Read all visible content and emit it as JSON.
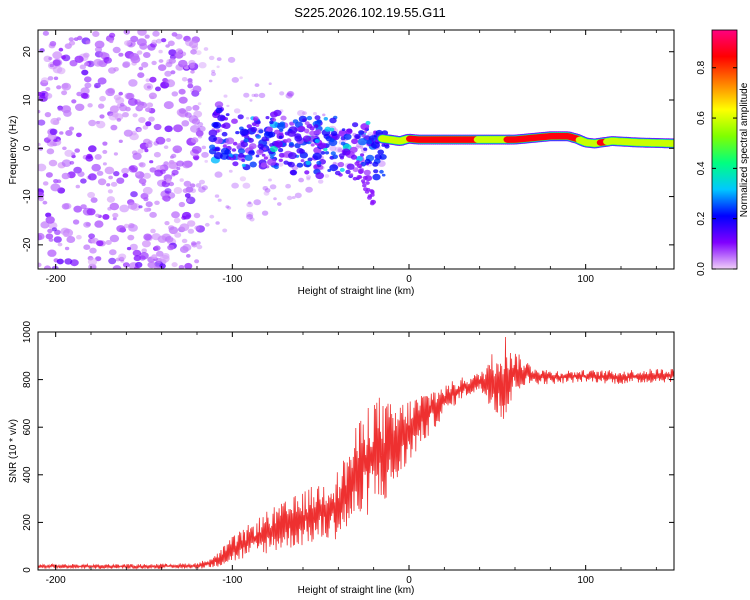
{
  "page_title": "S225.2026.102.19.55.G11",
  "chart_data": [
    {
      "type": "heatmap",
      "title": "S225.2026.102.19.55.G11",
      "xlabel": "Height of straight line (km)",
      "ylabel": "Frequency (Hz)",
      "xlim": [
        -210,
        150
      ],
      "ylim": [
        -25,
        24.5
      ],
      "xticks": [
        -200,
        -100,
        0,
        100
      ],
      "yticks": [
        20,
        10,
        0,
        -10,
        -20
      ],
      "colorbar": {
        "label": "Normalized spectral amplitude",
        "range": [
          0,
          0.95
        ],
        "ticks": [
          0.0,
          0.2,
          0.4,
          0.6,
          0.8
        ],
        "colors": [
          "#f0d0f8",
          "#8000ff",
          "#0000ff",
          "#00c8ff",
          "#00ff80",
          "#80ff00",
          "#ffff00",
          "#ff8000",
          "#ff0000",
          "#ff0080"
        ]
      },
      "regions": [
        {
          "name": "scattered noise",
          "x": [
            -210,
            -120
          ],
          "freq": [
            -25,
            24.5
          ],
          "amplitude": 0.1
        },
        {
          "name": "emerging signal",
          "x": [
            -120,
            -15
          ],
          "freq": [
            -15,
            12
          ],
          "amplitude": 0.25
        },
        {
          "name": "tracked tone",
          "x": [
            -15,
            150
          ],
          "freq": [
            0.5,
            3
          ],
          "amplitude": 0.9
        }
      ],
      "ridge": {
        "x": [
          -15,
          -5,
          0,
          5,
          20,
          40,
          60,
          80,
          90,
          95,
          100,
          105,
          115,
          130,
          150
        ],
        "freq": [
          2,
          1.5,
          2,
          1.8,
          1.8,
          1.8,
          1.8,
          2.5,
          2.5,
          2.0,
          1.2,
          1.0,
          1.5,
          1.2,
          1.0
        ]
      }
    },
    {
      "type": "line",
      "xlabel": "Height of straight line (km)",
      "ylabel": "SNR (10 * v/v)",
      "xlim": [
        -210,
        150
      ],
      "ylim": [
        0,
        1000
      ],
      "xticks": [
        -200,
        -100,
        0,
        100
      ],
      "yticks": [
        0,
        200,
        400,
        600,
        800,
        1000
      ],
      "series": [
        {
          "name": "SNR",
          "color": "#ee3030",
          "x": [
            -210,
            -180,
            -150,
            -120,
            -110,
            -100,
            -80,
            -60,
            -40,
            -30,
            -20,
            -10,
            0,
            10,
            20,
            30,
            40,
            50,
            55,
            60,
            70,
            80,
            100,
            120,
            150
          ],
          "y_min": [
            5,
            5,
            5,
            5,
            10,
            30,
            70,
            100,
            130,
            180,
            250,
            300,
            450,
            550,
            650,
            720,
            750,
            650,
            600,
            750,
            780,
            780,
            790,
            780,
            790
          ],
          "y_max": [
            25,
            25,
            25,
            30,
            60,
            140,
            250,
            330,
            420,
            600,
            750,
            700,
            720,
            760,
            780,
            810,
            830,
            950,
            1000,
            920,
            860,
            840,
            840,
            840,
            850
          ]
        }
      ]
    }
  ]
}
